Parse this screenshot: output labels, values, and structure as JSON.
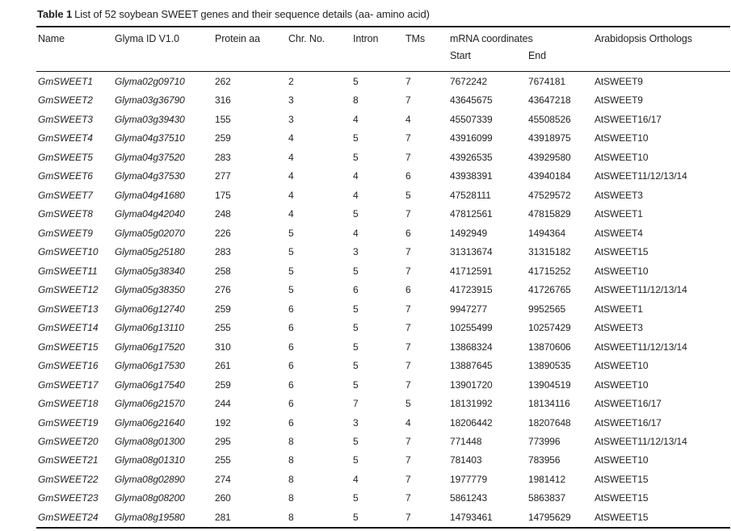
{
  "title": {
    "label": "Table 1",
    "text": "List of 52 soybean SWEET genes and their sequence details (aa- amino acid)"
  },
  "table": {
    "columns": [
      {
        "key": "name",
        "label": "Name"
      },
      {
        "key": "glyma-id",
        "label": "Glyma ID V1.0"
      },
      {
        "key": "protein-aa",
        "label": "Protein aa"
      },
      {
        "key": "chr-no",
        "label": "Chr. No."
      },
      {
        "key": "intron",
        "label": "Intron"
      },
      {
        "key": "tms",
        "label": "TMs"
      },
      {
        "key": "start",
        "label": "Start"
      },
      {
        "key": "end",
        "label": "End"
      },
      {
        "key": "orthologs",
        "label": "Arabidopsis Orthologs"
      }
    ],
    "group_header": "mRNA coordinates",
    "rows": [
      [
        "GmSWEET1",
        "Glyma02g09710",
        "262",
        "2",
        "5",
        "7",
        "7672242",
        "7674181",
        "AtSWEET9"
      ],
      [
        "GmSWEET2",
        "Glyma03g36790",
        "316",
        "3",
        "8",
        "7",
        "43645675",
        "43647218",
        "AtSWEET9"
      ],
      [
        "GmSWEET3",
        "Glyma03g39430",
        "155",
        "3",
        "4",
        "4",
        "45507339",
        "45508526",
        "AtSWEET16/17"
      ],
      [
        "GmSWEET4",
        "Glyma04g37510",
        "259",
        "4",
        "5",
        "7",
        "43916099",
        "43918975",
        "AtSWEET10"
      ],
      [
        "GmSWEET5",
        "Glyma04g37520",
        "283",
        "4",
        "5",
        "7",
        "43926535",
        "43929580",
        "AtSWEET10"
      ],
      [
        "GmSWEET6",
        "Glyma04g37530",
        "277",
        "4",
        "4",
        "6",
        "43938391",
        "43940184",
        "AtSWEET11/12/13/14"
      ],
      [
        "GmSWEET7",
        "Glyma04g41680",
        "175",
        "4",
        "4",
        "5",
        "47528111",
        "47529572",
        "AtSWEET3"
      ],
      [
        "GmSWEET8",
        "Glyma04g42040",
        "248",
        "4",
        "5",
        "7",
        "47812561",
        "47815829",
        "AtSWEET1"
      ],
      [
        "GmSWEET9",
        "Glyma05g02070",
        "226",
        "5",
        "4",
        "6",
        "1492949",
        "1494364",
        "AtSWEET4"
      ],
      [
        "GmSWEET10",
        "Glyma05g25180",
        "283",
        "5",
        "3",
        "7",
        "31313674",
        "31315182",
        "AtSWEET15"
      ],
      [
        "GmSWEET11",
        "Glyma05g38340",
        "258",
        "5",
        "5",
        "7",
        "41712591",
        "41715252",
        "AtSWEET10"
      ],
      [
        "GmSWEET12",
        "Glyma05g38350",
        "276",
        "5",
        "6",
        "6",
        "41723915",
        "41726765",
        "AtSWEET11/12/13/14"
      ],
      [
        "GmSWEET13",
        "Glyma06g12740",
        "259",
        "6",
        "5",
        "7",
        "9947277",
        "9952565",
        "AtSWEET1"
      ],
      [
        "GmSWEET14",
        "Glyma06g13110",
        "255",
        "6",
        "5",
        "7",
        "10255499",
        "10257429",
        "AtSWEET3"
      ],
      [
        "GmSWEET15",
        "Glyma06g17520",
        "310",
        "6",
        "5",
        "7",
        "13868324",
        "13870606",
        "AtSWEET11/12/13/14"
      ],
      [
        "GmSWEET16",
        "Glyma06g17530",
        "261",
        "6",
        "5",
        "7",
        "13887645",
        "13890535",
        "AtSWEET10"
      ],
      [
        "GmSWEET17",
        "Glyma06g17540",
        "259",
        "6",
        "5",
        "7",
        "13901720",
        "13904519",
        "AtSWEET10"
      ],
      [
        "GmSWEET18",
        "Glyma06g21570",
        "244",
        "6",
        "7",
        "5",
        "18131992",
        "18134116",
        "AtSWEET16/17"
      ],
      [
        "GmSWEET19",
        "Glyma06g21640",
        "192",
        "6",
        "3",
        "4",
        "18206442",
        "18207648",
        "AtSWEET16/17"
      ],
      [
        "GmSWEET20",
        "Glyma08g01300",
        "295",
        "8",
        "5",
        "7",
        "771448",
        "773996",
        "AtSWEET11/12/13/14"
      ],
      [
        "GmSWEET21",
        "Glyma08g01310",
        "255",
        "8",
        "5",
        "7",
        "781403",
        "783956",
        "AtSWEET10"
      ],
      [
        "GmSWEET22",
        "Glyma08g02890",
        "274",
        "8",
        "4",
        "7",
        "1977779",
        "1981412",
        "AtSWEET15"
      ],
      [
        "GmSWEET23",
        "Glyma08g08200",
        "260",
        "8",
        "5",
        "7",
        "5861243",
        "5863837",
        "AtSWEET15"
      ],
      [
        "GmSWEET24",
        "Glyma08g19580",
        "281",
        "8",
        "5",
        "7",
        "14793461",
        "14795629",
        "AtSWEET15"
      ]
    ]
  }
}
